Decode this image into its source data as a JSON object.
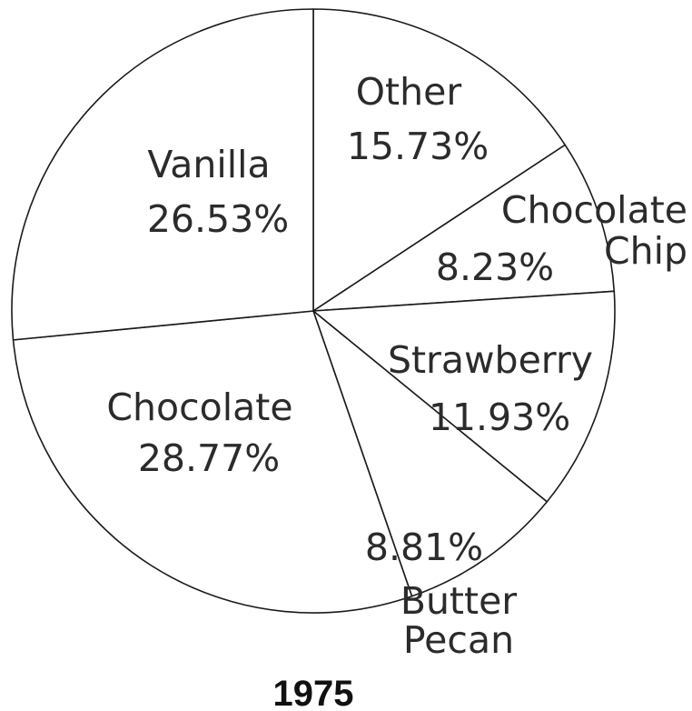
{
  "chart_data": {
    "type": "pie",
    "title": "1975",
    "slices": [
      {
        "label": [
          "Other"
        ],
        "value": 15.73,
        "value_label": "15.73%"
      },
      {
        "label": [
          "Chocolate",
          "Chip"
        ],
        "value": 8.23,
        "value_label": "8.23%"
      },
      {
        "label": [
          "Strawberry"
        ],
        "value": 11.93,
        "value_label": "11.93%"
      },
      {
        "label": [
          "Butter",
          "Pecan"
        ],
        "value": 8.81,
        "value_label": "8.81%"
      },
      {
        "label": [
          "Chocolate"
        ],
        "value": 28.77,
        "value_label": "28.77%"
      },
      {
        "label": [
          "Vanilla"
        ],
        "value": 26.53,
        "value_label": "26.53%"
      }
    ],
    "colors": {
      "fill": "#ffffff",
      "stroke": "#1a1a1a",
      "text": "#2b2b2b"
    }
  }
}
